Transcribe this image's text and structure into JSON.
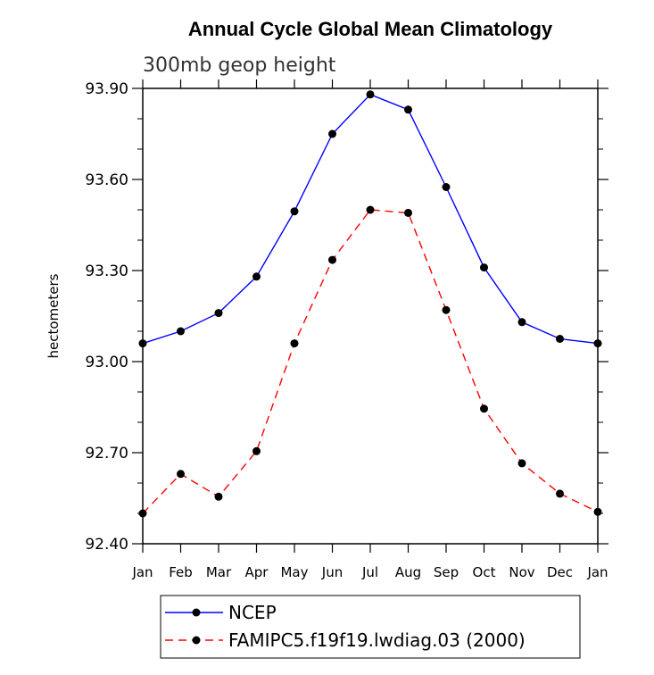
{
  "chart_data": {
    "type": "line",
    "title": "Annual Cycle Global Mean Climatology",
    "subtitle": "300mb geop height",
    "xlabel": "",
    "ylabel": "hectometers",
    "categories": [
      "Jan",
      "Feb",
      "Mar",
      "Apr",
      "May",
      "Jun",
      "Jul",
      "Aug",
      "Sep",
      "Oct",
      "Nov",
      "Dec",
      "Jan"
    ],
    "ylim": [
      92.4,
      93.9
    ],
    "yticks": [
      "92.40",
      "92.70",
      "93.00",
      "93.30",
      "93.60",
      "93.90"
    ],
    "grid": false,
    "legend_position": "bottom",
    "series": [
      {
        "name": "NCEP",
        "color": "#0000ff",
        "style": "solid",
        "values": [
          93.06,
          93.1,
          93.16,
          93.28,
          93.495,
          93.75,
          93.88,
          93.83,
          93.575,
          93.31,
          93.13,
          93.075,
          93.06
        ]
      },
      {
        "name": "FAMIPC5.f19f19.lwdiag.03 (2000)",
        "color": "#ff0000",
        "style": "dashed",
        "values": [
          92.5,
          92.63,
          92.555,
          92.705,
          93.06,
          93.335,
          93.5,
          93.49,
          93.17,
          92.845,
          92.665,
          92.565,
          92.505
        ]
      }
    ]
  }
}
